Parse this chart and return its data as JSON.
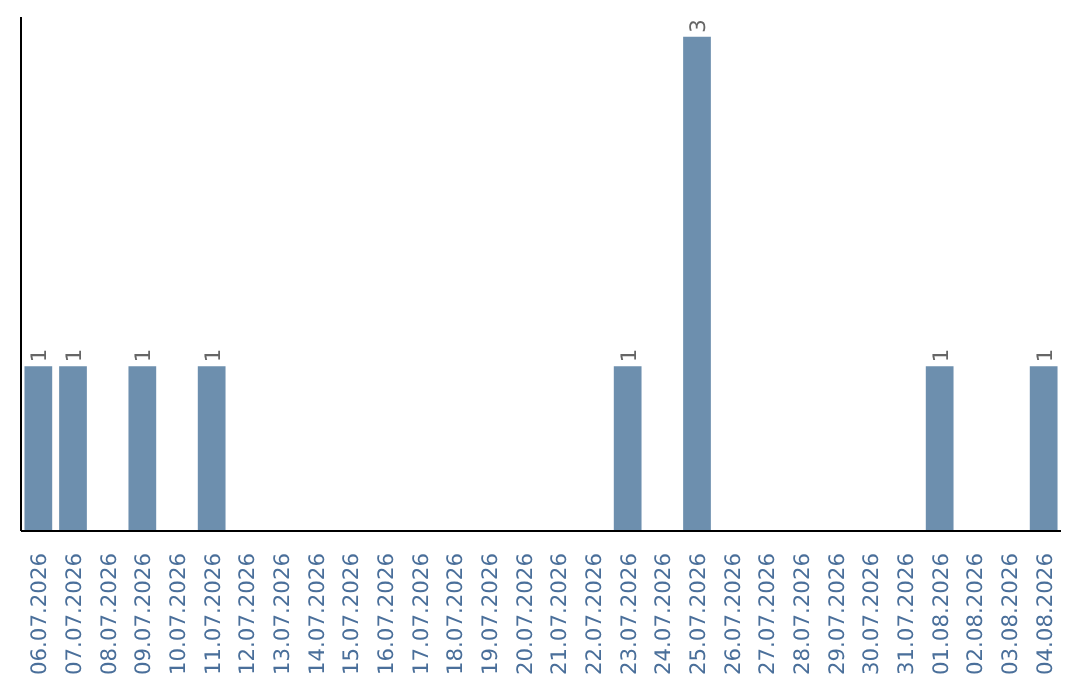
{
  "chart_data": {
    "type": "bar",
    "categories": [
      "06.07.2026",
      "07.07.2026",
      "08.07.2026",
      "09.07.2026",
      "10.07.2026",
      "11.07.2026",
      "12.07.2026",
      "13.07.2026",
      "14.07.2026",
      "15.07.2026",
      "16.07.2026",
      "17.07.2026",
      "18.07.2026",
      "19.07.2026",
      "20.07.2026",
      "21.07.2026",
      "22.07.2026",
      "23.07.2026",
      "24.07.2026",
      "25.07.2026",
      "26.07.2026",
      "27.07.2026",
      "28.07.2026",
      "29.07.2026",
      "30.07.2026",
      "31.07.2026",
      "01.08.2026",
      "02.08.2026",
      "03.08.2026",
      "04.08.2026"
    ],
    "values": [
      1,
      1,
      0,
      1,
      0,
      1,
      0,
      0,
      0,
      0,
      0,
      0,
      0,
      0,
      0,
      0,
      0,
      1,
      0,
      3,
      0,
      0,
      0,
      0,
      0,
      0,
      1,
      0,
      0,
      1
    ],
    "value_labels": [
      "1",
      "1",
      null,
      "1",
      null,
      "1",
      null,
      null,
      null,
      null,
      null,
      null,
      null,
      null,
      null,
      null,
      null,
      "1",
      null,
      "3",
      null,
      null,
      null,
      null,
      null,
      null,
      "1",
      null,
      null,
      "1"
    ],
    "color": "#6d8fae",
    "grid": false
  }
}
